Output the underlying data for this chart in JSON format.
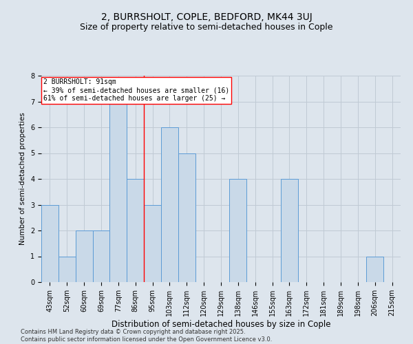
{
  "title": "2, BURRSHOLT, COPLE, BEDFORD, MK44 3UJ",
  "subtitle": "Size of property relative to semi-detached houses in Cople",
  "xlabel": "Distribution of semi-detached houses by size in Cople",
  "ylabel": "Number of semi-detached properties",
  "categories": [
    "43sqm",
    "52sqm",
    "60sqm",
    "69sqm",
    "77sqm",
    "86sqm",
    "95sqm",
    "103sqm",
    "112sqm",
    "120sqm",
    "129sqm",
    "138sqm",
    "146sqm",
    "155sqm",
    "163sqm",
    "172sqm",
    "181sqm",
    "189sqm",
    "198sqm",
    "206sqm",
    "215sqm"
  ],
  "values": [
    3,
    1,
    2,
    2,
    7,
    4,
    3,
    6,
    5,
    0,
    0,
    4,
    0,
    0,
    4,
    0,
    0,
    0,
    0,
    1,
    0
  ],
  "bar_color": "#c9d9e8",
  "bar_edge_color": "#5b9bd5",
  "bar_edge_width": 0.7,
  "grid_color": "#c0cad4",
  "background_color": "#dde5ed",
  "red_line_x": 5.5,
  "red_line_label": "2 BURRSHOLT: 91sqm",
  "annotation_line1": "← 39% of semi-detached houses are smaller (16)",
  "annotation_line2": "61% of semi-detached houses are larger (25) →",
  "box_color": "white",
  "box_edge_color": "red",
  "ylim": [
    0,
    8
  ],
  "yticks": [
    0,
    1,
    2,
    3,
    4,
    5,
    6,
    7,
    8
  ],
  "title_fontsize": 10,
  "subtitle_fontsize": 9,
  "xlabel_fontsize": 8.5,
  "ylabel_fontsize": 7.5,
  "tick_fontsize": 7,
  "annotation_fontsize": 7,
  "footer_text": "Contains HM Land Registry data © Crown copyright and database right 2025.\nContains public sector information licensed under the Open Government Licence v3.0.",
  "footer_fontsize": 6
}
